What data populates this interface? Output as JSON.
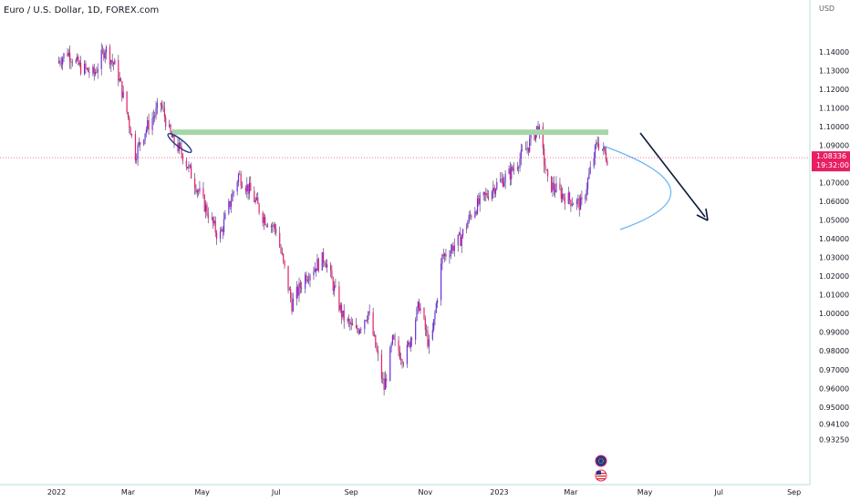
{
  "header": {
    "title": "Euro / U.S. Dollar, 1D, FOREX.com"
  },
  "price_axis": {
    "currency": "USD",
    "current_price": "1.08336",
    "countdown": "19:32:00"
  },
  "colors": {
    "up": "#6a2be0",
    "down": "#e91e63",
    "wick": "#4a1f6b",
    "resistance": "#a5d6a7",
    "arc": "#64b5f6",
    "arrow": "#0b1a3a",
    "price_tag": "#e91e63",
    "grid_line": "#e0f2f1"
  },
  "icons": [
    "eu-flag-icon",
    "us-flag-icon"
  ],
  "chart_data": {
    "type": "candlestick",
    "title": "Euro / U.S. Dollar, 1D, FOREX.com",
    "y_ticks": [
      "1.14000",
      "1.13000",
      "1.12000",
      "1.11000",
      "1.10000",
      "1.09000",
      "1.07000",
      "1.06000",
      "1.05000",
      "1.04000",
      "1.03000",
      "1.02000",
      "1.01000",
      "1.00000",
      "0.99000",
      "0.98000",
      "0.97000",
      "0.96000",
      "0.95000",
      "0.94100",
      "0.93250"
    ],
    "x_ticks": [
      "2022",
      "Mar",
      "May",
      "Jul",
      "Sep",
      "Nov",
      "2023",
      "Mar",
      "May",
      "Jul",
      "Sep"
    ],
    "ylim": [
      0.9325,
      1.15
    ],
    "current_price": 1.08336,
    "resistance_level": 1.097,
    "close_path": [
      [
        "2022-01-01",
        1.134
      ],
      [
        "2022-01-10",
        1.14
      ],
      [
        "2022-01-20",
        1.132
      ],
      [
        "2022-02-01",
        1.128
      ],
      [
        "2022-02-10",
        1.142
      ],
      [
        "2022-02-20",
        1.13
      ],
      [
        "2022-03-01",
        1.105
      ],
      [
        "2022-03-07",
        1.085
      ],
      [
        "2022-03-15",
        1.098
      ],
      [
        "2022-03-28",
        1.112
      ],
      [
        "2022-04-05",
        1.095
      ],
      [
        "2022-04-15",
        1.085
      ],
      [
        "2022-04-25",
        1.07
      ],
      [
        "2022-05-05",
        1.055
      ],
      [
        "2022-05-15",
        1.04
      ],
      [
        "2022-05-31",
        1.074
      ],
      [
        "2022-06-10",
        1.065
      ],
      [
        "2022-06-20",
        1.052
      ],
      [
        "2022-07-01",
        1.045
      ],
      [
        "2022-07-14",
        1.005
      ],
      [
        "2022-07-25",
        1.02
      ],
      [
        "2022-08-10",
        1.03
      ],
      [
        "2022-08-25",
        0.998
      ],
      [
        "2022-09-05",
        0.99
      ],
      [
        "2022-09-15",
        1.001
      ],
      [
        "2022-09-28",
        0.96
      ],
      [
        "2022-10-05",
        0.985
      ],
      [
        "2022-10-15",
        0.975
      ],
      [
        "2022-10-27",
        1.005
      ],
      [
        "2022-11-05",
        0.98
      ],
      [
        "2022-11-15",
        1.03
      ],
      [
        "2022-11-30",
        1.04
      ],
      [
        "2022-12-10",
        1.055
      ],
      [
        "2022-12-28",
        1.068
      ],
      [
        "2023-01-10",
        1.075
      ],
      [
        "2023-01-25",
        1.09
      ],
      [
        "2023-02-02",
        1.1
      ],
      [
        "2023-02-10",
        1.07
      ],
      [
        "2023-02-25",
        1.062
      ],
      [
        "2023-03-10",
        1.058
      ],
      [
        "2023-03-23",
        1.092
      ],
      [
        "2023-03-31",
        1.08336
      ]
    ]
  }
}
